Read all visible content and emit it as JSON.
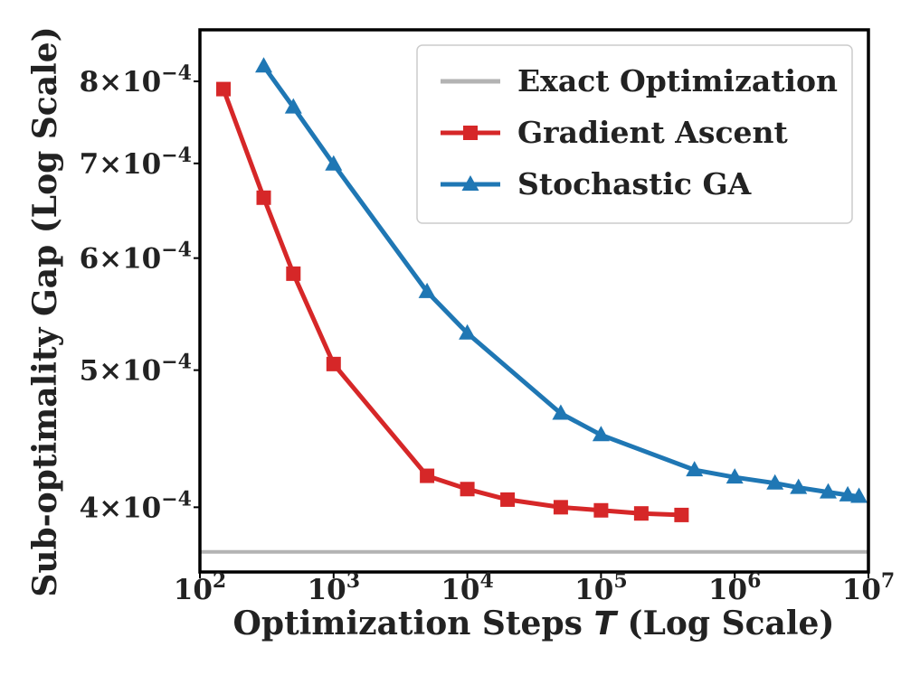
{
  "chart_data": {
    "type": "line",
    "title": "",
    "xlabel": "Optimization Steps T (Log Scale)",
    "xlabel_parts": {
      "before": "Optimization Steps ",
      "var": "T",
      "after": " (Log Scale)"
    },
    "ylabel": "Sub-optimality Gap (Log Scale)",
    "xscale": "log",
    "yscale": "log",
    "xlim": [
      100,
      10000000
    ],
    "ylim": [
      0.00036,
      0.00087
    ],
    "xticks": [
      {
        "value": 100,
        "base": "10",
        "exp": "2"
      },
      {
        "value": 1000,
        "base": "10",
        "exp": "3"
      },
      {
        "value": 10000,
        "base": "10",
        "exp": "4"
      },
      {
        "value": 100000,
        "base": "10",
        "exp": "5"
      },
      {
        "value": 1000000,
        "base": "10",
        "exp": "6"
      },
      {
        "value": 10000000,
        "base": "10",
        "exp": "7"
      }
    ],
    "yticks": [
      {
        "value": 0.0004,
        "mant": "4",
        "times": "×",
        "base": "10",
        "exp": "−4"
      },
      {
        "value": 0.0005,
        "mant": "5",
        "times": "×",
        "base": "10",
        "exp": "−4"
      },
      {
        "value": 0.0006,
        "mant": "6",
        "times": "×",
        "base": "10",
        "exp": "−4"
      },
      {
        "value": 0.0007,
        "mant": "7",
        "times": "×",
        "base": "10",
        "exp": "−4"
      },
      {
        "value": 0.0008,
        "mant": "8",
        "times": "×",
        "base": "10",
        "exp": "−4"
      }
    ],
    "legend_position": "top-right",
    "grid": false,
    "series": [
      {
        "name": "Exact Optimization",
        "kind": "hline",
        "color": "#b3b3b3",
        "marker": "none",
        "y": 0.000372
      },
      {
        "name": "Gradient Ascent",
        "kind": "line",
        "color": "#d62728",
        "marker": "square",
        "x": [
          150,
          300,
          500,
          1000,
          5000,
          10000,
          20000,
          50000,
          100000,
          200000,
          400000
        ],
        "y": [
          0.00079,
          0.000662,
          0.000585,
          0.000505,
          0.000421,
          0.000412,
          0.000405,
          0.0004,
          0.000398,
          0.000396,
          0.000395
        ]
      },
      {
        "name": "Stochastic GA",
        "kind": "line",
        "color": "#1f77b4",
        "marker": "triangle",
        "x": [
          300,
          500,
          1000,
          5000,
          10000,
          50000,
          100000,
          500000,
          1000000,
          2000000,
          3000000,
          5000000,
          7000000,
          8500000
        ],
        "y": [
          0.00082,
          0.000767,
          0.000699,
          0.000568,
          0.000531,
          0.000466,
          0.00045,
          0.000425,
          0.00042,
          0.000416,
          0.000413,
          0.00041,
          0.000408,
          0.000407
        ]
      }
    ]
  },
  "colors": {
    "frame": "#000000",
    "text": "#222222",
    "legend_border": "#cccccc"
  }
}
